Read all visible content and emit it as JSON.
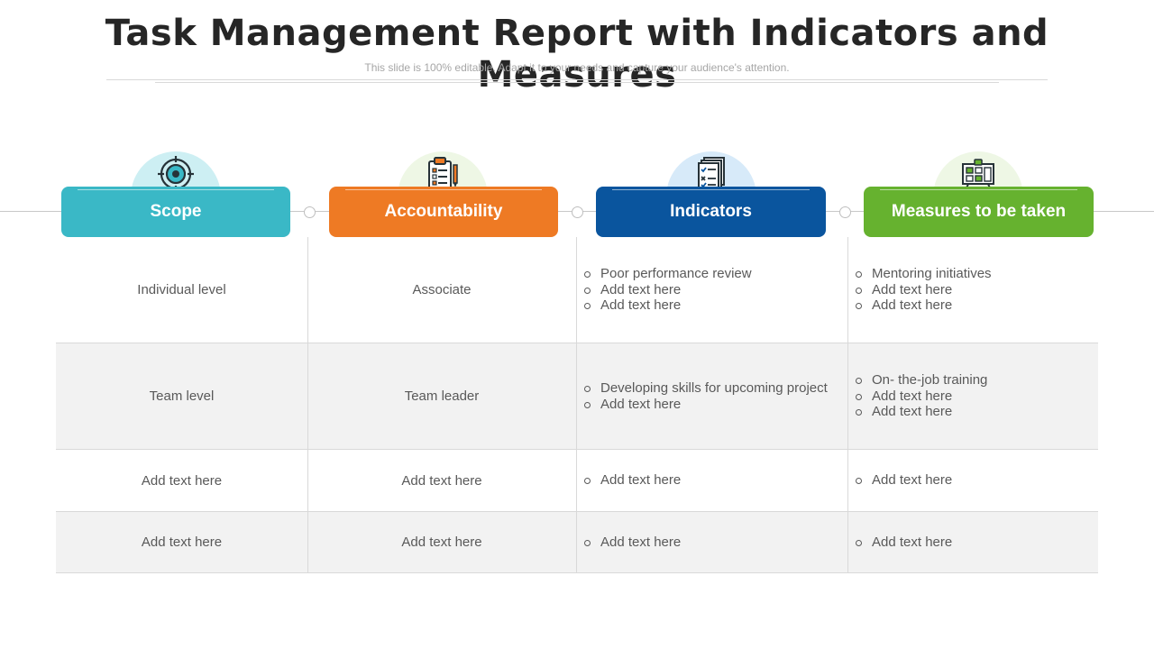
{
  "slide": {
    "title": "Task Management Report with Indicators and Measures",
    "subtitle": "This slide is 100% editable. Adapt it to your needs and capture your audience's attention."
  },
  "columns": [
    {
      "label": "Scope",
      "icon": "target-icon",
      "color": "#3AB8C6",
      "tint": "#CDEFF3"
    },
    {
      "label": "Accountability",
      "icon": "clipboard-checklist-icon",
      "color": "#EE7A24",
      "tint": "#EEF7E5"
    },
    {
      "label": "Indicators",
      "icon": "checklist-documents-icon",
      "color": "#0A559E",
      "tint": "#D7EAF9"
    },
    {
      "label": "Measures to be taken",
      "icon": "planning-board-icon",
      "color": "#66B22F",
      "tint": "#EEF7E5"
    }
  ],
  "rows": [
    {
      "scope": "Individual  level",
      "accountability": "Associate",
      "indicators": [
        "Poor performance review",
        "Add text here",
        "Add text here"
      ],
      "measures": [
        "Mentoring initiatives",
        "Add text here",
        "Add text here"
      ]
    },
    {
      "scope": "Team level",
      "accountability": "Team leader",
      "indicators": [
        "Developing skills for upcoming project",
        "Add text here"
      ],
      "measures": [
        "On- the-job training",
        "Add text here",
        "Add text here"
      ]
    },
    {
      "scope": "Add text here",
      "accountability": "Add text here",
      "indicators": [
        "Add text here"
      ],
      "measures": [
        "Add text here"
      ]
    },
    {
      "scope": "Add text here",
      "accountability": "Add text here",
      "indicators": [
        "Add text here"
      ],
      "measures": [
        "Add text here"
      ]
    }
  ]
}
